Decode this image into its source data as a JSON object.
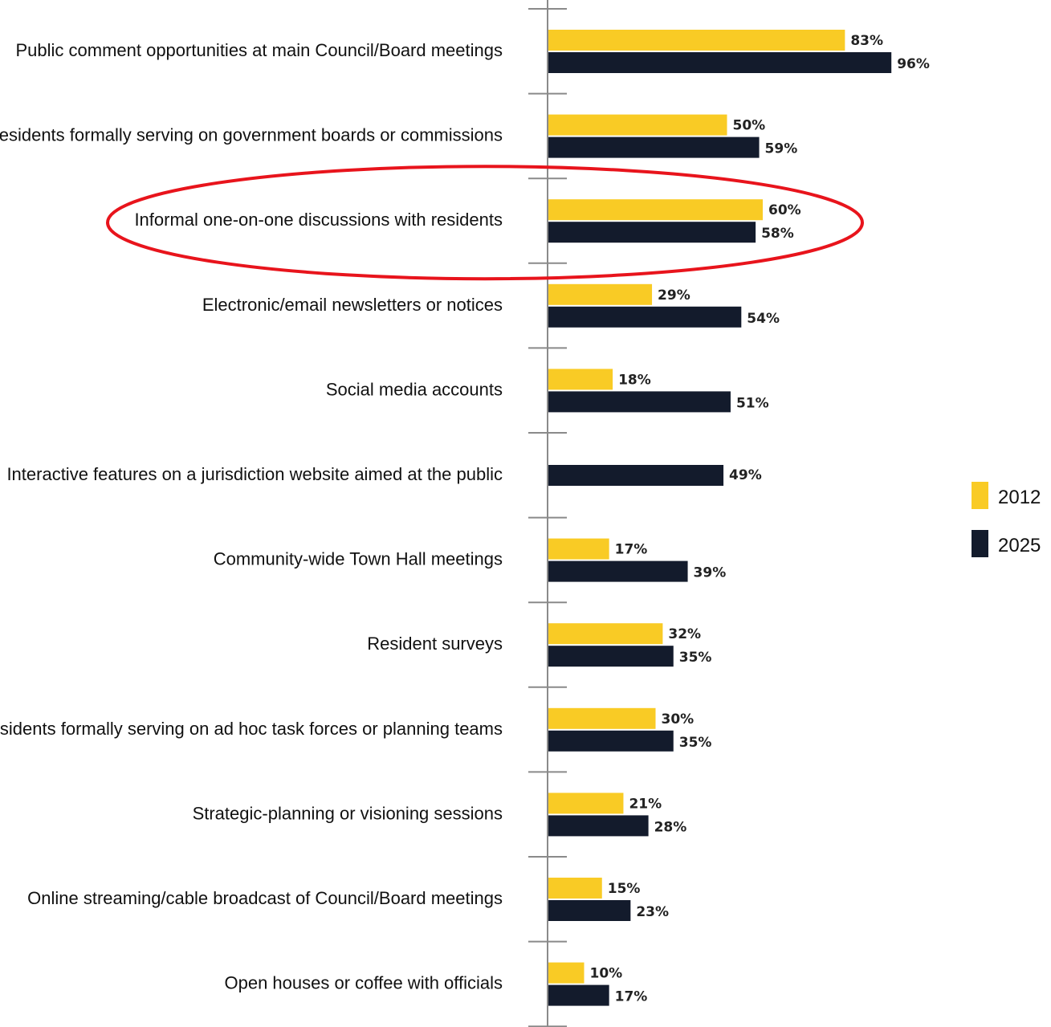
{
  "chart_data": {
    "type": "bar",
    "orientation": "horizontal",
    "categories": [
      "Public comment opportunities at main Council/Board meetings",
      "Residents formally serving on government boards or commissions",
      "Informal one-on-one discussions with residents",
      "Electronic/email newsletters or notices",
      "Social media accounts",
      "Interactive features on a jurisdiction website aimed at the public",
      "Community-wide Town Hall meetings",
      "Resident surveys",
      "Residents formally serving on ad hoc task forces or planning teams",
      "Strategic-planning or visioning sessions",
      "Online streaming/cable broadcast of Council/Board meetings",
      "Open houses or coffee with officials"
    ],
    "series": [
      {
        "name": "2012",
        "color": "#f9cb25",
        "values": [
          83,
          50,
          60,
          29,
          18,
          null,
          17,
          32,
          30,
          21,
          15,
          10
        ],
        "labels": [
          "83%",
          "50%",
          "60%",
          "29%",
          "18%",
          "",
          "17%",
          "32%",
          "30%",
          "21%",
          "15%",
          "10%"
        ]
      },
      {
        "name": "2025",
        "color": "#131b2c",
        "values": [
          96,
          59,
          58,
          54,
          51,
          49,
          39,
          35,
          35,
          28,
          23,
          17
        ],
        "labels": [
          "96%",
          "59%",
          "58%",
          "54%",
          "51%",
          "49%",
          "39%",
          "35%",
          "35%",
          "28%",
          "23%",
          "17%"
        ]
      }
    ],
    "value_unit": "%",
    "xlim": [
      0,
      100
    ],
    "grid": false,
    "legend_position": "right",
    "highlighted_category": "Informal one-on-one discussions with residents",
    "highlight_color": "#e8141c"
  }
}
